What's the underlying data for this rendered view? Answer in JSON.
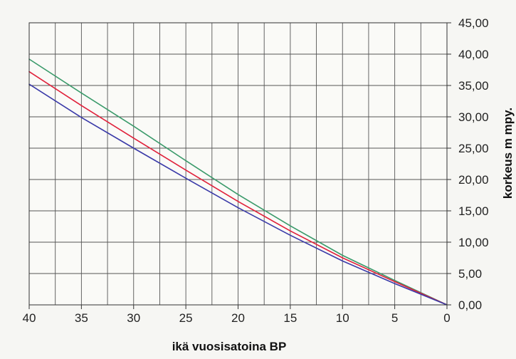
{
  "chart_data": {
    "type": "line",
    "title": "",
    "xlabel": "ikä vuosisatoina BP",
    "ylabel": "korkeus m mpy.",
    "xlim": [
      40,
      0
    ],
    "ylim": [
      0,
      45
    ],
    "x_reversed": true,
    "y_axis_side": "right",
    "grid": true,
    "legend": "none",
    "x_ticks": [
      {
        "value": 40,
        "label": "40"
      },
      {
        "value": 35,
        "label": "35"
      },
      {
        "value": 30,
        "label": "30"
      },
      {
        "value": 25,
        "label": "25"
      },
      {
        "value": 20,
        "label": "20"
      },
      {
        "value": 15,
        "label": "15"
      },
      {
        "value": 10,
        "label": "10"
      },
      {
        "value": 5,
        "label": "5"
      },
      {
        "value": 0,
        "label": "0"
      }
    ],
    "y_ticks": [
      {
        "value": 0,
        "label": "0,00"
      },
      {
        "value": 5,
        "label": "5,00"
      },
      {
        "value": 10,
        "label": "10,00"
      },
      {
        "value": 15,
        "label": "15,00"
      },
      {
        "value": 20,
        "label": "20,00"
      },
      {
        "value": 25,
        "label": "25,00"
      },
      {
        "value": 30,
        "label": "30,00"
      },
      {
        "value": 35,
        "label": "35,00"
      },
      {
        "value": 40,
        "label": "40,00"
      },
      {
        "value": 45,
        "label": "45,00"
      }
    ],
    "series": [
      {
        "color": "#3a9a6a",
        "x": [
          40,
          35,
          30,
          25,
          20,
          15,
          10,
          5,
          0
        ],
        "values": [
          39.2,
          33.8,
          28.5,
          23.0,
          17.6,
          12.6,
          7.9,
          3.9,
          0.0
        ]
      },
      {
        "color": "#e0203a",
        "x": [
          40,
          35,
          30,
          25,
          20,
          15,
          10,
          5,
          0
        ],
        "values": [
          37.2,
          31.8,
          26.6,
          21.5,
          16.5,
          11.8,
          7.5,
          3.7,
          0.0
        ]
      },
      {
        "color": "#3a3aa8",
        "x": [
          40,
          35,
          30,
          25,
          20,
          15,
          10,
          5,
          0
        ],
        "values": [
          35.2,
          29.9,
          25.0,
          20.2,
          15.5,
          11.1,
          7.0,
          3.4,
          0.0
        ]
      }
    ]
  }
}
